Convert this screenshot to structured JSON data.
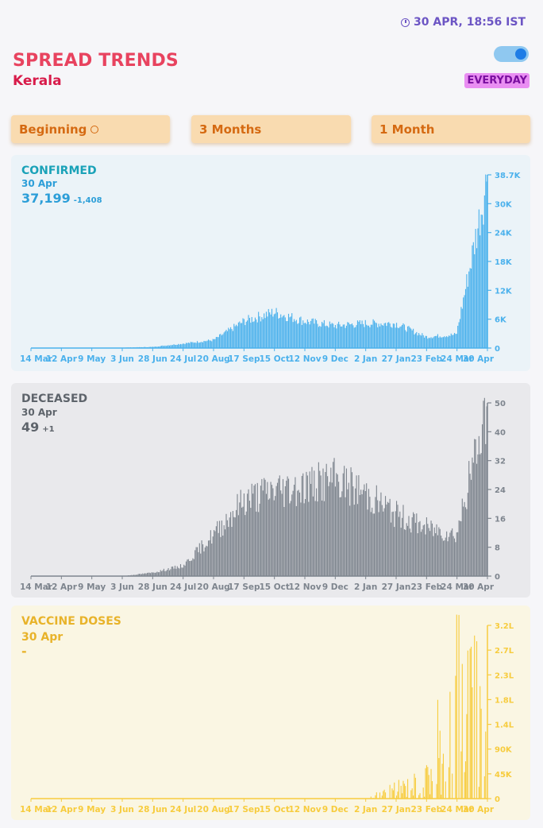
{
  "header": {
    "timestamp": "30 APR, 18:56 IST",
    "title": "SPREAD TRENDS",
    "state": "Kerala",
    "mode_label": "EVERYDAY",
    "toggle_on": true
  },
  "ranges": {
    "beginning": "Beginning",
    "three_months": "3 Months",
    "one_month": "1 Month",
    "selected": "Beginning"
  },
  "x_labels": [
    "14 Mar",
    "12 Apr",
    "9 May",
    "3 Jun",
    "28 Jun",
    "24 Jul",
    "20 Aug",
    "17 Sep",
    "15 Oct",
    "12 Nov",
    "9 Dec",
    "2 Jan",
    "27 Jan",
    "23 Feb",
    "24 Mar",
    "30 Apr"
  ],
  "confirmed": {
    "title": "CONFIRMED",
    "date": "30 Apr",
    "value": "37,199",
    "delta": "-1,408",
    "color": "#4bb1ec",
    "text_color": "#2c9ed8",
    "title_color": "#1aa2b8",
    "bg": "#ebf3f8",
    "y_ticks": [
      "0",
      "6K",
      "12K",
      "18K",
      "24K",
      "30K",
      "38.7K"
    ]
  },
  "deceased": {
    "title": "DECEASED",
    "date": "30 Apr",
    "value": "49",
    "delta": "+1",
    "color": "#7e858e",
    "text_color": "#5e646b",
    "bg": "#e9e9ec",
    "y_ticks": [
      "0",
      "8",
      "16",
      "24",
      "32",
      "40",
      "50"
    ]
  },
  "vaccine": {
    "title": "VACCINE DOSES",
    "date": "30 Apr",
    "value": "-",
    "color": "#f7cc3e",
    "text_color": "#e8b32a",
    "bg": "#faf6e3",
    "y_ticks": [
      "0",
      "45K",
      "90K",
      "1.4L",
      "1.8L",
      "2.3L",
      "2.7L",
      "3.2L"
    ]
  },
  "chart_data": [
    {
      "type": "bar",
      "title": "CONFIRMED",
      "x": [
        "14 Mar",
        "12 Apr",
        "9 May",
        "3 Jun",
        "28 Jun",
        "24 Jul",
        "20 Aug",
        "17 Sep",
        "15 Oct",
        "12 Nov",
        "9 Dec",
        "2 Jan",
        "27 Jan",
        "23 Feb",
        "24 Mar",
        "30 Apr"
      ],
      "values": [
        0,
        5,
        10,
        90,
        250,
        1000,
        1800,
        6000,
        8000,
        6000,
        5000,
        5500,
        5500,
        2500,
        3000,
        37199
      ],
      "ylim": [
        0,
        38700
      ]
    },
    {
      "type": "bar",
      "title": "DECEASED",
      "x": [
        "14 Mar",
        "12 Apr",
        "9 May",
        "3 Jun",
        "28 Jun",
        "24 Jul",
        "20 Aug",
        "17 Sep",
        "15 Oct",
        "12 Nov",
        "9 Dec",
        "2 Jan",
        "27 Jan",
        "23 Feb",
        "24 Mar",
        "30 Apr"
      ],
      "values": [
        0,
        0,
        0,
        0,
        1,
        3,
        12,
        22,
        25,
        26,
        28,
        24,
        18,
        14,
        12,
        49
      ],
      "ylim": [
        0,
        50
      ]
    },
    {
      "type": "bar",
      "title": "VACCINE DOSES",
      "x": [
        "14 Mar",
        "12 Apr",
        "9 May",
        "3 Jun",
        "28 Jun",
        "24 Jul",
        "20 Aug",
        "17 Sep",
        "15 Oct",
        "12 Nov",
        "9 Dec",
        "2 Jan",
        "27 Jan",
        "23 Feb",
        "24 Mar",
        "30 Apr"
      ],
      "values": [
        0,
        0,
        0,
        0,
        0,
        0,
        0,
        0,
        0,
        0,
        0,
        0,
        20000,
        40000,
        250000,
        150000
      ],
      "ylim": [
        0,
        320000
      ]
    }
  ]
}
